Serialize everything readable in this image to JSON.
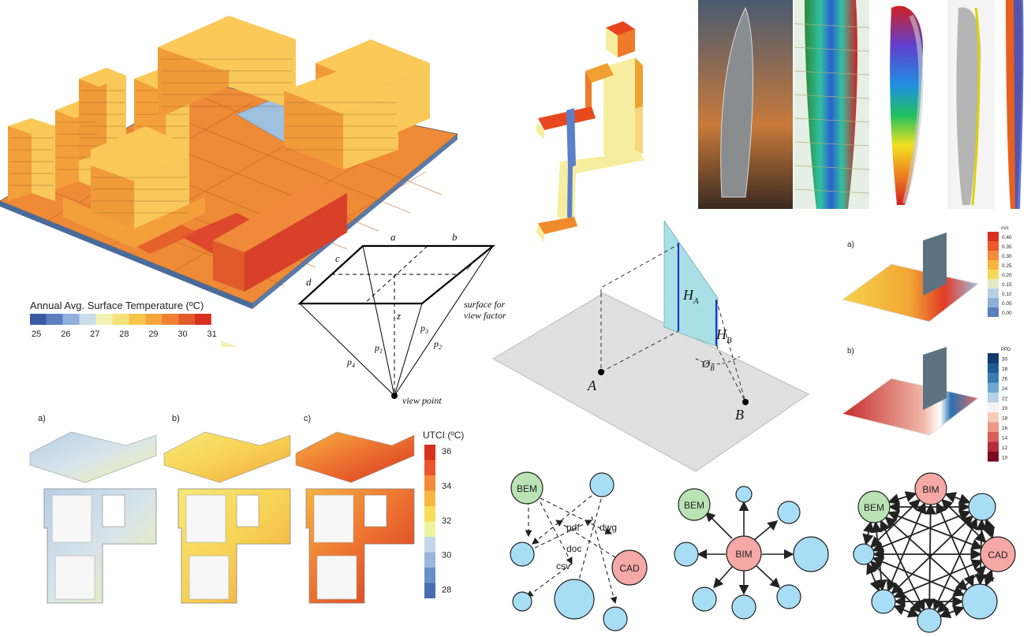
{
  "city_model": {
    "legend_title": "Annual Avg. Surface Temperature (ºC)",
    "legend_ticks": [
      "25",
      "26",
      "27",
      "28",
      "29",
      "30",
      "31"
    ],
    "legend_colors": [
      "#3b5aa6",
      "#5d7fc0",
      "#8fb0dc",
      "#c8dcea",
      "#f2f2b3",
      "#f6e27a",
      "#f8c64a",
      "#f4a53c",
      "#ef8232",
      "#e45a2a",
      "#d7301f"
    ]
  },
  "view_factor": {
    "labels": {
      "a": "a",
      "b": "b",
      "c": "c",
      "d": "d",
      "z": "z",
      "p1": "p",
      "p1_sub": "1",
      "p2": "p",
      "p2_sub": "2",
      "p3": "p",
      "p3_sub": "3",
      "p4": "p",
      "p4_sub": "4"
    },
    "surface_label_1": "surface for",
    "surface_label_2": "view factor",
    "view_point": "view point"
  },
  "height_diagram": {
    "HA": "H",
    "HA_sub": "A",
    "HB": "H",
    "HB_sub": "B",
    "phi": "Ø",
    "phi_sub": "B",
    "A": "A",
    "B": "B"
  },
  "utci": {
    "panel_labels": [
      "a)",
      "b)",
      "c)"
    ],
    "legend_title": "UTCI (ºC)",
    "legend_ticks": [
      "36",
      "34",
      "32",
      "30",
      "28"
    ],
    "legend_colors": [
      "#d7301f",
      "#e9562b",
      "#f18a3a",
      "#f7b640",
      "#f8dd58",
      "#eef4a0",
      "#c3d7e9",
      "#98b7db",
      "#6b8fc8",
      "#4a6db2"
    ]
  },
  "cfd": {
    "panel_a": "a)",
    "panel_b": "b)",
    "unit_a": "m/s",
    "ticks_a": [
      "0.40",
      "0.35",
      "0.30",
      "0.25",
      "0.20",
      "0.15",
      "0.10",
      "0.05",
      "0.00"
    ],
    "colors_a": [
      "#d7301f",
      "#ec5a2a",
      "#f38b3a",
      "#f8b440",
      "#f7d95a",
      "#e0eac8",
      "#b9cfe4",
      "#8eb0d8",
      "#5a7fc0"
    ],
    "unit_b": "PPD",
    "ticks_b": [
      "30",
      "28",
      "26",
      "24",
      "22",
      "20",
      "18",
      "16",
      "14",
      "12",
      "10"
    ],
    "colors_b": [
      "#123a6e",
      "#1f5a94",
      "#3b7db5",
      "#70a6cf",
      "#b4d3e6",
      "#f4f4f4",
      "#f6cdbb",
      "#ec9a84",
      "#d9605a",
      "#b52b3a",
      "#7a0c22"
    ]
  },
  "networks": {
    "left": {
      "bem": "BEM",
      "cad": "CAD",
      "pdf": "pdf",
      "dwg": "dwg",
      "doc": "doc",
      "csv": "csv"
    },
    "middle": {
      "bem": "BEM",
      "bim": "BIM"
    },
    "right": {
      "bem": "BEM",
      "bim": "BIM",
      "cad": "CAD"
    },
    "colors": {
      "node": "#a8def5",
      "bem": "#b9e3b5",
      "bim": "#f5a8a6",
      "cad": "#f5a8a6"
    }
  }
}
